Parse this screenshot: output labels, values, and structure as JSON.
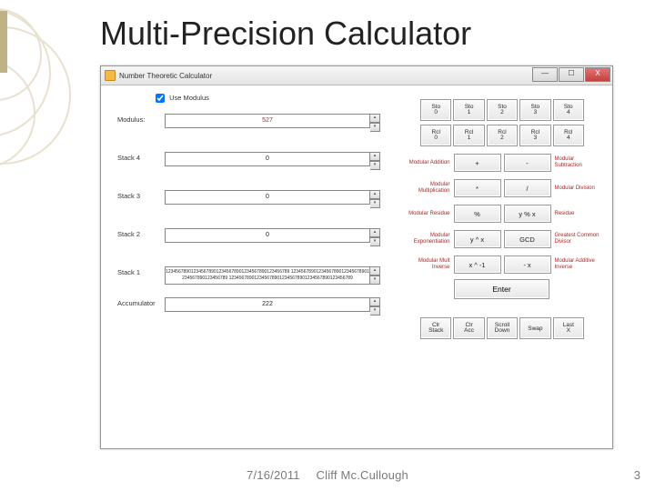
{
  "slide": {
    "title": "Multi-Precision Calculator",
    "date": "7/16/2011",
    "author": "Cliff Mc.Cullough",
    "page_number": "3",
    "accent_color": "#c0b283",
    "deco_stroke": "#e8e1cf"
  },
  "window": {
    "title": "Number Theoretic Calculator",
    "buttons": {
      "min": "—",
      "max": "☐",
      "close": "X"
    }
  },
  "left": {
    "use_modulus_label": "Use Modulus",
    "use_modulus_checked": true,
    "modulus_label": "Modulus:",
    "modulus_value": "527",
    "stack4_label": "Stack 4",
    "stack4_value": "0",
    "stack3_label": "Stack 3",
    "stack3_value": "0",
    "stack2_label": "Stack 2",
    "stack2_value": "0",
    "stack1_label": "Stack 1",
    "stack1_value": "1234567890123456789012345678901234567890123456789 1234567890123456789012345678901234567890123456789 1234567890123456789012345678901234567890123456789",
    "acc_label": "Accumulator",
    "acc_value": "222"
  },
  "mem": {
    "sto": [
      "Sto",
      "0",
      "Sto",
      "1",
      "Sto",
      "2",
      "Sto",
      "3",
      "Sto",
      "4"
    ],
    "rcl": [
      "Rcl",
      "0",
      "Rcl",
      "1",
      "Rcl",
      "2",
      "Rcl",
      "3",
      "Rcl",
      "4"
    ]
  },
  "ops": [
    {
      "left": "Modular Addition",
      "b1": "+",
      "b2": "-",
      "right": "Modular Subtraction"
    },
    {
      "left": "Modular Multiplication",
      "b1": "*",
      "b2": "/",
      "right": "Modular Division"
    },
    {
      "left": "Modular Residue",
      "b1": "%",
      "b2": "y % x",
      "right": "Residue"
    },
    {
      "left": "Modular Exponentiation",
      "b1": "y ^ x",
      "b2": "GCD",
      "right": "Greatest Common Divisor"
    },
    {
      "left": "Modular Mult Inverse",
      "b1": "x ^ -1",
      "b2": "- x",
      "right": "Modular Additive Inverse"
    }
  ],
  "enter_label": "Enter",
  "bottom": [
    "Clr Stack",
    "Clr Acc",
    "Scroll Down",
    "Swap",
    "Last X"
  ]
}
